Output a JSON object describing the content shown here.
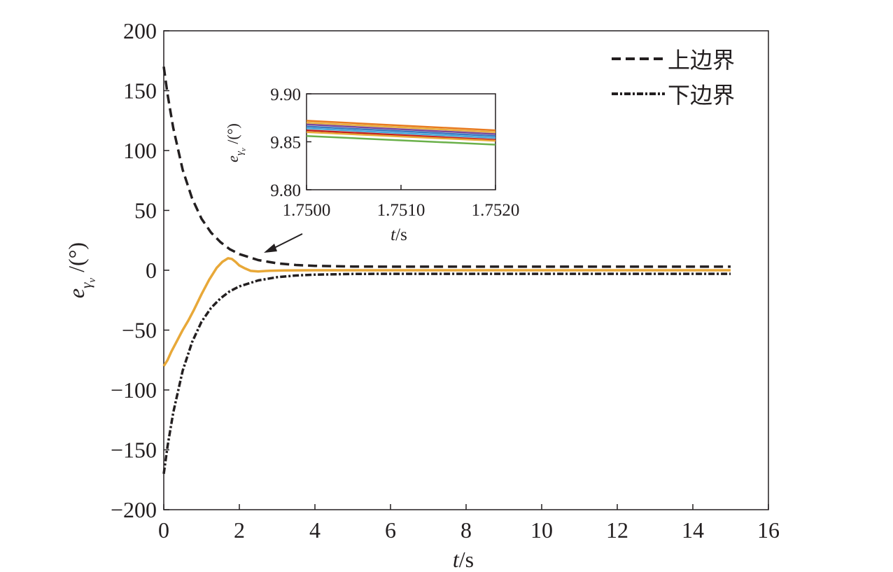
{
  "chart_data": [
    {
      "type": "line",
      "xlabel": "t/s",
      "ylabel": "e_γv /(°)",
      "xlim": [
        0,
        16
      ],
      "ylim": [
        -200,
        200
      ],
      "xticks": [
        0,
        2,
        4,
        6,
        8,
        10,
        12,
        14,
        16
      ],
      "yticks": [
        -200,
        -150,
        -100,
        -50,
        0,
        50,
        100,
        150,
        200
      ],
      "x_tick_labels": [
        "0",
        "2",
        "4",
        "6",
        "8",
        "10",
        "12",
        "14",
        "16"
      ],
      "y_tick_labels": [
        "−200",
        "−150",
        "−100",
        "−50",
        "0",
        "50",
        "100",
        "150",
        "200"
      ],
      "grid": false,
      "legend_position": "top-right",
      "series": [
        {
          "name": "上边界",
          "style": "dashed",
          "color": "#231f20",
          "x": [
            0,
            0.1,
            0.25,
            0.5,
            0.75,
            1.0,
            1.25,
            1.5,
            1.75,
            2.0,
            2.5,
            3.0,
            3.5,
            4.0,
            5.0,
            6.0,
            8.0,
            10.0,
            12.0,
            15.0
          ],
          "y": [
            170,
            147,
            119,
            84,
            60,
            43,
            31.5,
            23.5,
            17.5,
            13.5,
            8.5,
            5.8,
            4.4,
            3.7,
            3.1,
            3.0,
            3.0,
            3.0,
            3.0,
            3.0
          ]
        },
        {
          "name": "下边界",
          "style": "dash-dot",
          "color": "#231f20",
          "x": [
            0,
            0.1,
            0.25,
            0.5,
            0.75,
            1.0,
            1.25,
            1.5,
            1.75,
            2.0,
            2.5,
            3.0,
            3.5,
            4.0,
            5.0,
            6.0,
            8.0,
            10.0,
            12.0,
            15.0
          ],
          "y": [
            -170,
            -147,
            -119,
            -84,
            -60,
            -43,
            -31.5,
            -23.5,
            -17.5,
            -13.5,
            -8.5,
            -5.8,
            -4.4,
            -3.7,
            -3.1,
            -3.0,
            -3.0,
            -3.0,
            -3.0,
            -3.0
          ]
        },
        {
          "style": "solid",
          "color": "#e8a838",
          "x": [
            0,
            0.1,
            0.2,
            0.35,
            0.5,
            0.65,
            0.8,
            1.0,
            1.2,
            1.4,
            1.55,
            1.7,
            1.8,
            1.9,
            2.0,
            2.15,
            2.3,
            2.5,
            2.8,
            3.2,
            4.0,
            6.0,
            10.0,
            15.0
          ],
          "y": [
            -80,
            -75,
            -68,
            -59,
            -50,
            -42,
            -33,
            -20,
            -8,
            2,
            7,
            10,
            9.5,
            7,
            4,
            1.5,
            -0.5,
            -1.0,
            -0.4,
            -0.1,
            0,
            0,
            0,
            0
          ]
        }
      ]
    },
    {
      "type": "line",
      "xlabel": "t/s",
      "ylabel": "e_γv /(°)",
      "xlim": [
        1.75,
        1.752
      ],
      "ylim": [
        9.8,
        9.9
      ],
      "xticks": [
        1.75,
        1.751,
        1.752
      ],
      "yticks": [
        9.8,
        9.85,
        9.9
      ],
      "x_tick_labels": [
        "1.7500",
        "1.7510",
        "1.7520"
      ],
      "y_tick_labels": [
        "9.80",
        "9.85",
        "9.90"
      ],
      "grid": false,
      "series": [
        {
          "color": "#e87a20",
          "x": [
            1.75,
            1.752
          ],
          "y": [
            9.872,
            9.862
          ]
        },
        {
          "color": "#e8b040",
          "x": [
            1.75,
            1.752
          ],
          "y": [
            9.87,
            9.86
          ]
        },
        {
          "color": "#7a4a9a",
          "x": [
            1.75,
            1.752
          ],
          "y": [
            9.868,
            9.858
          ]
        },
        {
          "color": "#3a7ac0",
          "x": [
            1.75,
            1.752
          ],
          "y": [
            9.866,
            9.856
          ]
        },
        {
          "color": "#4aa8d8",
          "x": [
            1.75,
            1.752
          ],
          "y": [
            9.864,
            9.854
          ]
        },
        {
          "color": "#c02020",
          "x": [
            1.75,
            1.752
          ],
          "y": [
            9.862,
            9.852
          ]
        },
        {
          "color": "#e8a838",
          "x": [
            1.75,
            1.752
          ],
          "y": [
            9.86,
            9.851
          ]
        },
        {
          "color": "#6ab04a",
          "x": [
            1.75,
            1.752
          ],
          "y": [
            9.856,
            9.847
          ]
        }
      ]
    }
  ],
  "legend": {
    "upper_label": "上边界",
    "lower_label": "下边界"
  },
  "axis_text": {
    "x_main": "t/s",
    "x_inset": "t/s"
  },
  "colors": {
    "axis": "#231f20",
    "tracking_error": "#e8a838"
  }
}
